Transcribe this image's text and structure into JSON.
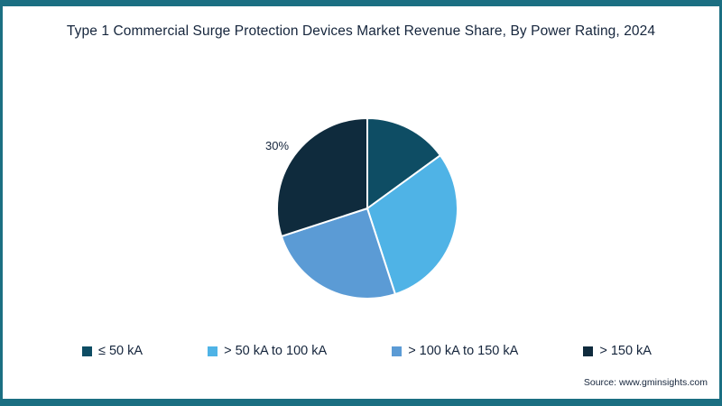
{
  "frame": {
    "border_color": "#1b6f82"
  },
  "header": {},
  "footer": {
    "source": "Source: www.gminsights.com"
  },
  "chart_data": {
    "type": "pie",
    "title": "Type 1 Commercial Surge Protection Devices Market Revenue Share, By Power Rating, 2024",
    "categories": [
      "≤ 50 kA",
      "> 50 kA to 100 kA",
      "> 100 kA to 150 kA",
      "> 150 kA"
    ],
    "values": [
      15,
      30,
      25,
      30
    ],
    "colors": [
      "#0e4d64",
      "#4fb3e6",
      "#5b9bd5",
      "#0f2b3d"
    ],
    "start_angle_deg": 0,
    "direction": "clockwise",
    "slice_gap_stroke": "#ffffff",
    "visible_labels": [
      {
        "category": "> 150 kA",
        "text": "30%"
      }
    ],
    "legend_position": "bottom"
  }
}
